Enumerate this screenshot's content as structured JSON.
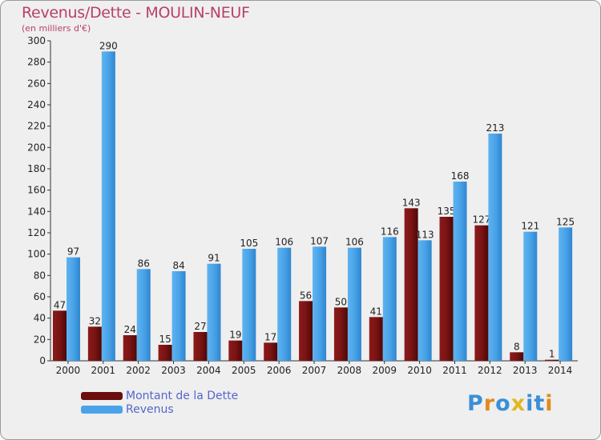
{
  "header": {
    "title": "Revenus/Dette - MOULIN-NEUF",
    "subtitle": "(en milliers d'€)"
  },
  "chart_data": {
    "type": "bar",
    "categories": [
      "2000",
      "2001",
      "2002",
      "2003",
      "2004",
      "2005",
      "2006",
      "2007",
      "2008",
      "2009",
      "2010",
      "2011",
      "2012",
      "2013",
      "2014"
    ],
    "series": [
      {
        "name": "Montant de la Dette",
        "color": "#7a1414",
        "values": [
          47,
          32,
          24,
          15,
          27,
          19,
          17,
          56,
          50,
          41,
          143,
          135,
          127,
          8,
          1
        ]
      },
      {
        "name": "Revenus",
        "color": "#4aa3e8",
        "values": [
          97,
          290,
          86,
          84,
          91,
          105,
          106,
          107,
          106,
          116,
          113,
          168,
          213,
          121,
          125
        ]
      }
    ],
    "ylim": [
      0,
      300
    ],
    "yticks": [
      0,
      20,
      40,
      60,
      80,
      100,
      120,
      140,
      160,
      180,
      200,
      220,
      240,
      260,
      280,
      300
    ],
    "grid": false,
    "legend_position": "bottom-left"
  },
  "legend": {
    "items": [
      {
        "label": "Montant de la Dette",
        "color": "#6a0e0e"
      },
      {
        "label": "Revenus",
        "color": "#4aa3e8"
      }
    ]
  },
  "logo": {
    "letters": [
      "P",
      "r",
      "o",
      "x",
      "i",
      "t",
      "i"
    ],
    "colors": [
      "#3a8fd8",
      "#e08a1e",
      "#3a8fd8",
      "#e0b81e",
      "#3a8fd8",
      "#3a8fd8",
      "#e08a1e"
    ]
  }
}
